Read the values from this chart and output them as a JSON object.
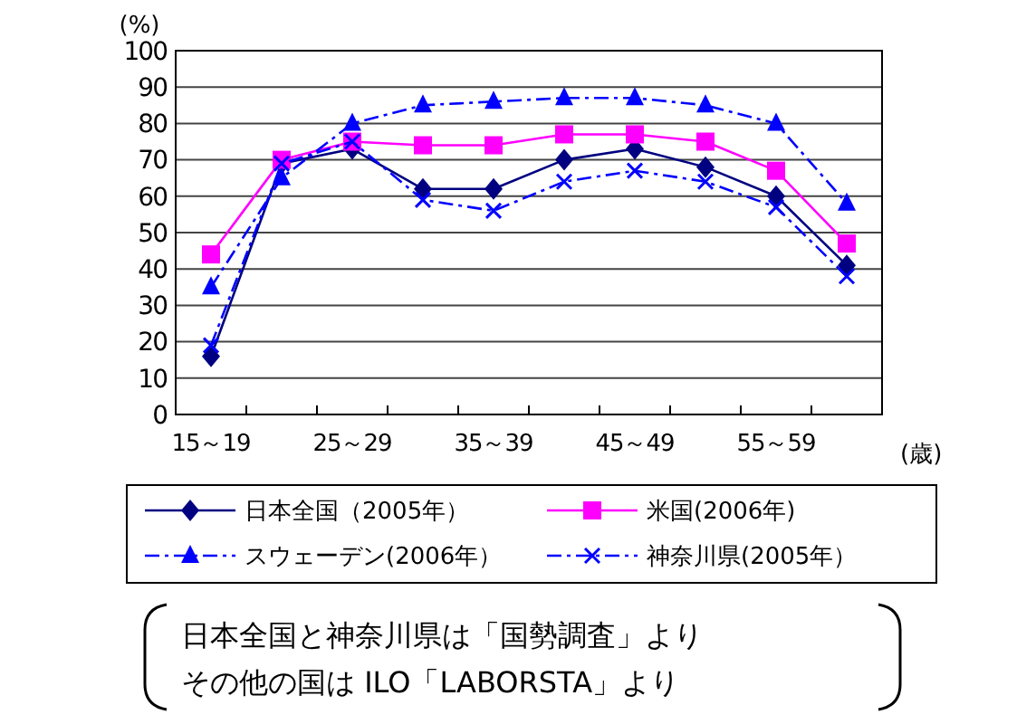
{
  "chart_data": {
    "type": "line",
    "ylabel": "(%)",
    "xlabel": "(歳)",
    "categories": [
      "15～19",
      null,
      "25～29",
      null,
      "35～39",
      null,
      "45～49",
      null,
      "55～59",
      null
    ],
    "ylim": [
      0,
      100
    ],
    "yticks": [
      0,
      10,
      20,
      30,
      40,
      50,
      60,
      70,
      80,
      90,
      100
    ],
    "grid": "y",
    "legend": "bottom",
    "series": [
      {
        "name": "日本全国（2005年）",
        "color": "#000080",
        "marker": "diamond",
        "line_style": "solid",
        "values": [
          16,
          69,
          73,
          62,
          62,
          70,
          73,
          68,
          60,
          41
        ]
      },
      {
        "name": "米国(2006年)",
        "color": "#ff00ff",
        "marker": "square",
        "line_style": "solid",
        "values": [
          44,
          70,
          75,
          74,
          74,
          77,
          77,
          75,
          67,
          47
        ]
      },
      {
        "name": "スウェーデン(2006年）",
        "color": "#0000ff",
        "marker": "triangle",
        "line_style": "dashed",
        "values": [
          35,
          65,
          80,
          85,
          86,
          87,
          87,
          85,
          80,
          58
        ]
      },
      {
        "name": "神奈川県(2005年）",
        "color": "#0000ff",
        "marker": "cross",
        "line_style": "dashed",
        "values": [
          19,
          69,
          75,
          59,
          56,
          64,
          67,
          64,
          57,
          38
        ]
      }
    ],
    "annotations": [
      "日本全国と神奈川県は「国勢調査」より",
      "その他の国は ILO「LABORSTA」より"
    ]
  }
}
